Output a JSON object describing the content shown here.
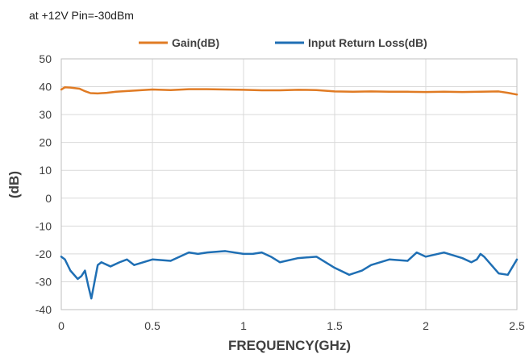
{
  "chart_data": {
    "type": "line",
    "title": "",
    "subtitle": "at +12V Pin=-30dBm",
    "xlabel": "FREQUENCY(GHz)",
    "ylabel": "(dB)",
    "xlim": [
      0,
      2.5
    ],
    "ylim": [
      -40,
      50
    ],
    "x_ticks": [
      "0",
      "0.5",
      "1",
      "1.5",
      "2",
      "2.5"
    ],
    "y_ticks": [
      "50",
      "40",
      "30",
      "20",
      "10",
      "0",
      "-10",
      "-20",
      "-30",
      "-40"
    ],
    "grid": true,
    "legend_position": "top",
    "series": [
      {
        "name": "Gain(dB)",
        "color": "#E07B24",
        "x": [
          0,
          0.02,
          0.05,
          0.1,
          0.13,
          0.16,
          0.2,
          0.25,
          0.3,
          0.4,
          0.5,
          0.6,
          0.7,
          0.8,
          0.9,
          1.0,
          1.1,
          1.2,
          1.3,
          1.4,
          1.5,
          1.6,
          1.7,
          1.8,
          1.9,
          2.0,
          2.1,
          2.2,
          2.3,
          2.4,
          2.45,
          2.5
        ],
        "y": [
          39.0,
          39.8,
          39.7,
          39.3,
          38.4,
          37.7,
          37.6,
          37.8,
          38.2,
          38.6,
          39.0,
          38.8,
          39.1,
          39.1,
          39.0,
          38.9,
          38.7,
          38.7,
          38.9,
          38.8,
          38.3,
          38.2,
          38.3,
          38.2,
          38.2,
          38.1,
          38.2,
          38.1,
          38.2,
          38.3,
          37.8,
          37.2
        ]
      },
      {
        "name": "Input Return Loss(dB)",
        "color": "#1F6FB4",
        "x": [
          0,
          0.02,
          0.05,
          0.09,
          0.11,
          0.13,
          0.15,
          0.165,
          0.2,
          0.22,
          0.27,
          0.32,
          0.36,
          0.4,
          0.5,
          0.6,
          0.7,
          0.75,
          0.8,
          0.9,
          1.0,
          1.05,
          1.1,
          1.15,
          1.2,
          1.3,
          1.4,
          1.5,
          1.58,
          1.65,
          1.7,
          1.8,
          1.9,
          1.95,
          2.0,
          2.1,
          2.2,
          2.25,
          2.28,
          2.3,
          2.32,
          2.4,
          2.45,
          2.5
        ],
        "y": [
          -21,
          -22,
          -26,
          -29,
          -28,
          -26,
          -32,
          -36,
          -24,
          -23,
          -24.5,
          -23,
          -22,
          -24,
          -22,
          -22.5,
          -19.5,
          -20,
          -19.5,
          -19,
          -20,
          -20,
          -19.5,
          -21,
          -23,
          -21.5,
          -21,
          -25,
          -27.5,
          -26,
          -24,
          -22,
          -22.5,
          -19.5,
          -21,
          -19.5,
          -21.5,
          -23,
          -22,
          -20,
          -21,
          -27,
          -27.5,
          -22
        ]
      }
    ]
  }
}
